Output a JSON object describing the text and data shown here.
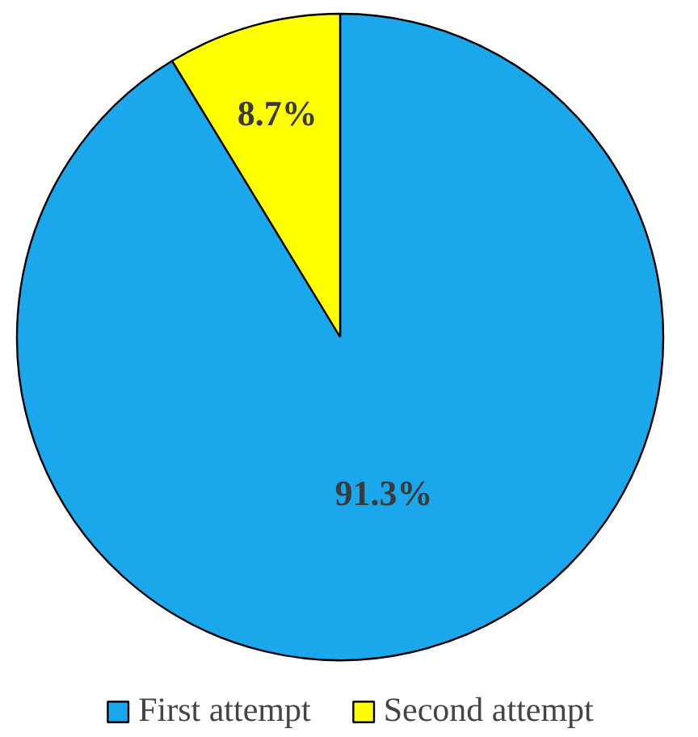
{
  "chart_data": {
    "type": "pie",
    "categories": [
      "First attempt",
      "Second attempt"
    ],
    "values": [
      91.3,
      8.7
    ],
    "colors": [
      "#1aa7ec",
      "#ffff00"
    ],
    "value_labels": [
      "91.3%",
      "8.7%"
    ],
    "legend": "bottom"
  }
}
